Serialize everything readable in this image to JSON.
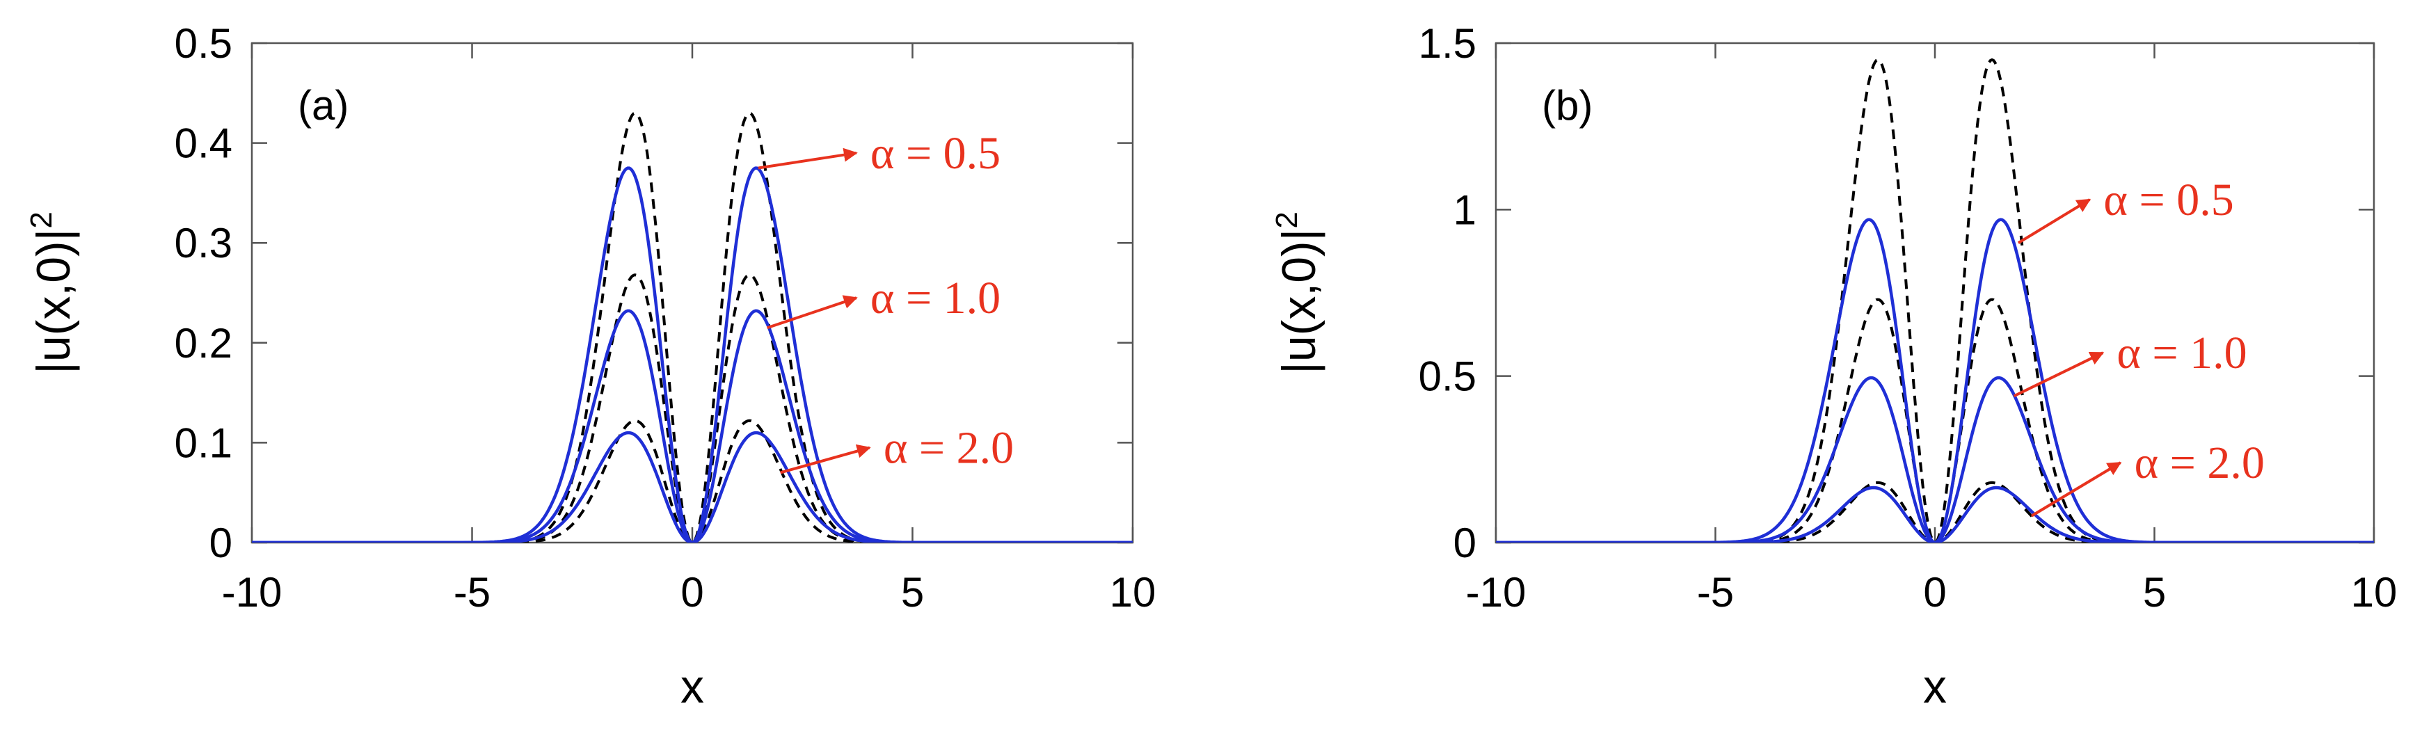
{
  "chart_data": [
    {
      "type": "line",
      "panel_label": "(a)",
      "xlabel": "x",
      "ylabel": "|u(x,0)|",
      "ylabel_sup": "2",
      "xlim": [
        -10,
        10
      ],
      "ylim": [
        0,
        0.5
      ],
      "xticks": [
        -10,
        -5,
        0,
        5,
        10
      ],
      "yticks": [
        0,
        0.1,
        0.2,
        0.3,
        0.4,
        0.5
      ],
      "xtick_labels": [
        "-10",
        "-5",
        "0",
        "5",
        "10"
      ],
      "ytick_labels": [
        "0",
        "0.1",
        "0.2",
        "0.3",
        "0.4",
        "0.5"
      ],
      "annotations": [
        {
          "text": "α = 0.5",
          "target": [
            1.5,
            0.375
          ],
          "text_pos": [
            4.2,
            0.39
          ]
        },
        {
          "text": "α = 1.0",
          "target": [
            1.7,
            0.215
          ],
          "text_pos": [
            4.2,
            0.245
          ]
        },
        {
          "text": "α = 2.0",
          "target": [
            2.0,
            0.07
          ],
          "text_pos": [
            4.5,
            0.095
          ]
        }
      ],
      "series": [
        {
          "alpha": 0.5,
          "style": "solid",
          "color": "#1f2fd6",
          "peak": 0.375,
          "peak_x": 1.45,
          "width": 1.0
        },
        {
          "alpha": 1.0,
          "style": "solid",
          "color": "#1f2fd6",
          "peak": 0.232,
          "peak_x": 1.45,
          "width": 0.98
        },
        {
          "alpha": 2.0,
          "style": "solid",
          "color": "#1f2fd6",
          "peak": 0.11,
          "peak_x": 1.45,
          "width": 0.95
        },
        {
          "alpha": 0.5,
          "style": "dashed",
          "color": "#000000",
          "peak": 0.43,
          "peak_x": 1.3,
          "width": 0.8
        },
        {
          "alpha": 1.0,
          "style": "dashed",
          "color": "#000000",
          "peak": 0.268,
          "peak_x": 1.3,
          "width": 0.8
        },
        {
          "alpha": 2.0,
          "style": "dashed",
          "color": "#000000",
          "peak": 0.122,
          "peak_x": 1.3,
          "width": 0.8
        }
      ]
    },
    {
      "type": "line",
      "panel_label": "(b)",
      "xlabel": "x",
      "ylabel": "|u(x,0)|",
      "ylabel_sup": "2",
      "xlim": [
        -10,
        10
      ],
      "ylim": [
        0,
        1.5
      ],
      "xticks": [
        -10,
        -5,
        0,
        5,
        10
      ],
      "yticks": [
        0,
        0.5,
        1,
        1.5
      ],
      "xtick_labels": [
        "-10",
        "-5",
        "0",
        "5",
        "10"
      ],
      "ytick_labels": [
        "0",
        "0.5",
        "1",
        "1.5"
      ],
      "annotations": [
        {
          "text": "α = 0.5",
          "target": [
            1.9,
            0.9
          ],
          "text_pos": [
            4.0,
            1.03
          ]
        },
        {
          "text": "α = 1.0",
          "target": [
            1.8,
            0.44
          ],
          "text_pos": [
            4.3,
            0.57
          ]
        },
        {
          "text": "α = 2.0",
          "target": [
            2.2,
            0.08
          ],
          "text_pos": [
            4.7,
            0.24
          ]
        }
      ],
      "series": [
        {
          "alpha": 0.5,
          "style": "solid",
          "color": "#1f2fd6",
          "peak": 0.97,
          "peak_x": 1.5,
          "width": 1.45
        },
        {
          "alpha": 1.0,
          "style": "solid",
          "color": "#1f2fd6",
          "peak": 0.495,
          "peak_x": 1.45,
          "width": 1.15
        },
        {
          "alpha": 2.0,
          "style": "solid",
          "color": "#1f2fd6",
          "peak": 0.165,
          "peak_x": 1.4,
          "width": 0.95
        },
        {
          "alpha": 0.5,
          "style": "dashed",
          "color": "#000000",
          "peak": 1.45,
          "peak_x": 1.3,
          "width": 0.8
        },
        {
          "alpha": 1.0,
          "style": "dashed",
          "color": "#000000",
          "peak": 0.73,
          "peak_x": 1.3,
          "width": 0.8
        },
        {
          "alpha": 2.0,
          "style": "dashed",
          "color": "#000000",
          "peak": 0.18,
          "peak_x": 1.3,
          "width": 0.8
        }
      ]
    }
  ]
}
